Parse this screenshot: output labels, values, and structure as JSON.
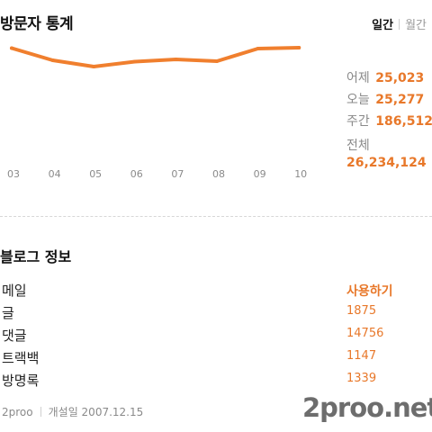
{
  "header": {
    "title": "방문자 통계",
    "tabs": [
      {
        "label": "일간",
        "active": true
      },
      {
        "label": "월간",
        "active": false
      }
    ]
  },
  "chart_data": {
    "type": "line",
    "categories": [
      "03",
      "04",
      "05",
      "06",
      "07",
      "08",
      "09",
      "10"
    ],
    "series": [
      {
        "values": [
          25.3,
          22.6,
          21.2,
          22.3,
          22.8,
          22.4,
          25.2,
          25.4
        ]
      }
    ],
    "ylim": [
      0,
      30
    ],
    "color": "#f07f2e",
    "grid": false
  },
  "stats": [
    {
      "label": "어제",
      "value": "25,023"
    },
    {
      "label": "오늘",
      "value": "25,277"
    },
    {
      "label": "주간",
      "value": "186,512"
    }
  ],
  "stats_total": {
    "label": "전체",
    "value": "26,234,124"
  },
  "blog": {
    "title": "블로그 정보",
    "rows": [
      {
        "label": "메일",
        "value": "사용하기"
      },
      {
        "label": "글",
        "value": "1875"
      },
      {
        "label": "댓글",
        "value": "14756"
      },
      {
        "label": "트랙백",
        "value": "1147"
      },
      {
        "label": "방명록",
        "value": "1339"
      }
    ]
  },
  "footer": {
    "owner": "2proo",
    "opened": "개설일  2007.12.15"
  },
  "watermark": "2proo.net",
  "colors": {
    "accent": "#e8782a",
    "muted": "#8a8a8a"
  }
}
